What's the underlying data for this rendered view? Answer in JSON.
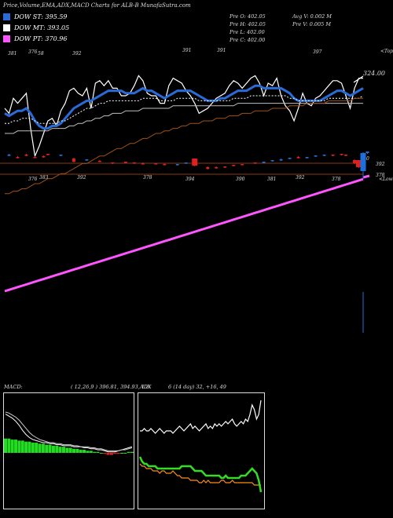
{
  "title": "Price,Volume,EMA,ADX,MACD Charts for ALB-B MunafaSutra.com",
  "legend": [
    {
      "label": "DOW ST: 395.59",
      "color": "#2a6bd8"
    },
    {
      "label": "DOW MT: 393.05",
      "color": "#ffffff"
    },
    {
      "label": "DOW PT: 370.96",
      "color": "#ff55ff"
    }
  ],
  "ohlc": {
    "col1": [
      "Pre  O: 402.05",
      "Pre  H: 402.05",
      "Pre  L: 402.00",
      "Pre  C: 402.00"
    ],
    "col2": [
      "Avg V: 0.002  M",
      "Pre  V: 0.005 M"
    ]
  },
  "chart_data": [
    {
      "type": "line",
      "panel": "price-ema",
      "top_right_label": "<Top",
      "last_price_label": "324.00",
      "peak_labels": [
        "381",
        "376",
        "58",
        "392",
        "391",
        "391",
        "397"
      ],
      "trough_labels": [
        "376",
        "383",
        "392",
        "378",
        "394",
        "390",
        "381",
        "392",
        "378",
        "0"
      ],
      "series": [
        {
          "name": "Close",
          "color": "#ffffff",
          "values": [
            390,
            388,
            394,
            392,
            394,
            396,
            382,
            371,
            375,
            380,
            385,
            386,
            383,
            389,
            392,
            397,
            398,
            396,
            395,
            398,
            390,
            400,
            401,
            399,
            401,
            398,
            398,
            395,
            395,
            396,
            399,
            403,
            401,
            396,
            395,
            395,
            392,
            392,
            399,
            402,
            401,
            400,
            397,
            395,
            392,
            388,
            389,
            390,
            392,
            394,
            395,
            396,
            399,
            401,
            400,
            398,
            400,
            402,
            403,
            400,
            395,
            400,
            399,
            402,
            395,
            391,
            389,
            385,
            390,
            396,
            392,
            391,
            394,
            395,
            397,
            399,
            401,
            401,
            400,
            395,
            390,
            398,
            402,
            402
          ]
        },
        {
          "name": "EMA short",
          "color": "#2a6bd8",
          "values": [
            388,
            387,
            388,
            389,
            389,
            390,
            388,
            385,
            383,
            382,
            382,
            383,
            383,
            384,
            386,
            388,
            390,
            391,
            392,
            393,
            393,
            394,
            395,
            396,
            397,
            397,
            397,
            397,
            396,
            396,
            396,
            397,
            398,
            397,
            397,
            396,
            395,
            394,
            395,
            396,
            397,
            397,
            397,
            397,
            396,
            395,
            394,
            393,
            393,
            393,
            394,
            394,
            395,
            396,
            397,
            397,
            397,
            398,
            399,
            399,
            398,
            398,
            398,
            398,
            398,
            397,
            396,
            394,
            393,
            393,
            393,
            393,
            393,
            393,
            394,
            395,
            396,
            397,
            397,
            396,
            395,
            396,
            397,
            398
          ]
        },
        {
          "name": "EMA mid",
          "color": "#ffffff",
          "dashed": true,
          "values": [
            384,
            384,
            385,
            385,
            386,
            386,
            386,
            385,
            384,
            384,
            384,
            384,
            384,
            385,
            385,
            386,
            387,
            388,
            389,
            390,
            390,
            391,
            392,
            392,
            393,
            393,
            393,
            393,
            393,
            393,
            393,
            393,
            394,
            394,
            394,
            394,
            393,
            393,
            393,
            393,
            394,
            394,
            394,
            394,
            394,
            393,
            393,
            393,
            393,
            393,
            393,
            393,
            393,
            394,
            394,
            394,
            394,
            395,
            395,
            395,
            395,
            395,
            395,
            395,
            395,
            395,
            394,
            394,
            393,
            393,
            393,
            393,
            393,
            393,
            393,
            394,
            394,
            394,
            394,
            394,
            394,
            394,
            394,
            395
          ]
        },
        {
          "name": "EMA long",
          "color": "#c0c0c0",
          "values": [
            380,
            380,
            380,
            381,
            381,
            381,
            381,
            381,
            381,
            381,
            381,
            382,
            382,
            382,
            382,
            383,
            383,
            384,
            384,
            385,
            385,
            386,
            386,
            387,
            387,
            388,
            388,
            388,
            389,
            389,
            389,
            389,
            390,
            390,
            390,
            390,
            390,
            390,
            390,
            391,
            391,
            391,
            391,
            391,
            391,
            391,
            391,
            391,
            391,
            391,
            391,
            391,
            391,
            391,
            392,
            392,
            392,
            392,
            392,
            392,
            392,
            392,
            392,
            392,
            392,
            392,
            392,
            392,
            392,
            392,
            392,
            392,
            392,
            392,
            392,
            392,
            392,
            392,
            392,
            392,
            392,
            392,
            392,
            392
          ]
        },
        {
          "name": "EMA 200",
          "color": "#a0521a",
          "values": [
            356,
            356,
            357,
            357,
            358,
            358,
            359,
            360,
            360,
            361,
            362,
            362,
            363,
            364,
            364,
            365,
            366,
            367,
            368,
            368,
            369,
            370,
            371,
            371,
            372,
            373,
            374,
            374,
            375,
            376,
            376,
            377,
            378,
            378,
            379,
            380,
            380,
            381,
            381,
            382,
            382,
            383,
            383,
            384,
            384,
            384,
            385,
            385,
            385,
            386,
            386,
            386,
            387,
            387,
            387,
            388,
            388,
            388,
            389,
            389,
            389,
            389,
            390,
            390,
            390,
            390,
            391,
            391,
            391,
            391,
            392,
            392,
            392,
            392,
            392,
            393,
            393,
            393,
            393,
            393,
            393,
            394,
            394,
            394
          ]
        }
      ]
    },
    {
      "type": "bar",
      "panel": "price-candles",
      "top_right_label": "<Low",
      "peak_labels": [
        "376",
        "383",
        "392",
        "378",
        "394",
        "390",
        "381",
        "392",
        "378",
        "0"
      ],
      "hlines": [
        392,
        378
      ],
      "hline_labels": [
        "392",
        "378"
      ],
      "candles": [
        {
          "i": 1,
          "o": 402,
          "c": 403,
          "h": 404,
          "l": 401
        },
        {
          "i": 3,
          "o": 400,
          "c": 399,
          "h": 401,
          "l": 398
        },
        {
          "i": 5,
          "o": 403,
          "c": 402,
          "h": 404,
          "l": 401
        },
        {
          "i": 7,
          "o": 400,
          "c": 399,
          "h": 401,
          "l": 399
        },
        {
          "i": 9,
          "o": 401,
          "c": 400,
          "h": 402,
          "l": 399
        },
        {
          "i": 10,
          "o": 404,
          "c": 403,
          "h": 404,
          "l": 402
        },
        {
          "i": 13,
          "o": 402,
          "c": 403,
          "h": 403,
          "l": 401
        },
        {
          "i": 16,
          "o": 398,
          "c": 394,
          "h": 399,
          "l": 393
        },
        {
          "i": 19,
          "o": 396,
          "c": 397,
          "h": 397,
          "l": 395
        },
        {
          "i": 22,
          "o": 395,
          "c": 394,
          "h": 396,
          "l": 394
        },
        {
          "i": 25,
          "o": 393,
          "c": 392,
          "h": 393,
          "l": 391
        },
        {
          "i": 28,
          "o": 394,
          "c": 393,
          "h": 394,
          "l": 392
        },
        {
          "i": 30,
          "o": 393,
          "c": 392,
          "h": 393,
          "l": 391
        },
        {
          "i": 32,
          "o": 392,
          "c": 391,
          "h": 393,
          "l": 391
        },
        {
          "i": 35,
          "o": 392,
          "c": 391,
          "h": 392,
          "l": 391
        },
        {
          "i": 37,
          "o": 391,
          "c": 390,
          "h": 392,
          "l": 390
        },
        {
          "i": 40,
          "o": 390,
          "c": 391,
          "h": 391,
          "l": 389
        },
        {
          "i": 42,
          "o": 392,
          "c": 393,
          "h": 393,
          "l": 391
        },
        {
          "i": 44,
          "o": 398,
          "c": 389,
          "h": 398,
          "l": 388
        },
        {
          "i": 47,
          "o": 387,
          "c": 385,
          "h": 388,
          "l": 384
        },
        {
          "i": 49,
          "o": 387,
          "c": 386,
          "h": 388,
          "l": 385
        },
        {
          "i": 51,
          "o": 388,
          "c": 387,
          "h": 388,
          "l": 386
        },
        {
          "i": 53,
          "o": 390,
          "c": 389,
          "h": 390,
          "l": 388
        },
        {
          "i": 55,
          "o": 391,
          "c": 390,
          "h": 391,
          "l": 390
        },
        {
          "i": 58,
          "o": 393,
          "c": 392,
          "h": 393,
          "l": 391
        },
        {
          "i": 60,
          "o": 393,
          "c": 394,
          "h": 394,
          "l": 392
        },
        {
          "i": 62,
          "o": 395,
          "c": 396,
          "h": 396,
          "l": 394
        },
        {
          "i": 64,
          "o": 396,
          "c": 397,
          "h": 398,
          "l": 395
        },
        {
          "i": 66,
          "o": 398,
          "c": 399,
          "h": 399,
          "l": 397
        },
        {
          "i": 68,
          "o": 400,
          "c": 399,
          "h": 401,
          "l": 398
        },
        {
          "i": 70,
          "o": 399,
          "c": 400,
          "h": 400,
          "l": 398
        },
        {
          "i": 72,
          "o": 401,
          "c": 402,
          "h": 402,
          "l": 400
        },
        {
          "i": 74,
          "o": 402,
          "c": 403,
          "h": 403,
          "l": 401
        },
        {
          "i": 76,
          "o": 403,
          "c": 402,
          "h": 403,
          "l": 401
        },
        {
          "i": 78,
          "o": 404,
          "c": 403,
          "h": 404,
          "l": 402
        },
        {
          "i": 79,
          "o": 403,
          "c": 402,
          "h": 403,
          "l": 401
        },
        {
          "i": 81,
          "o": 396,
          "c": 392,
          "h": 397,
          "l": 391
        },
        {
          "i": 82,
          "o": 396,
          "c": 387,
          "h": 396,
          "l": 386
        },
        {
          "i": 83,
          "o": 382,
          "c": 405,
          "h": 406,
          "l": 372
        },
        {
          "i": 84,
          "o": 405,
          "c": 407,
          "h": 407,
          "l": 404
        }
      ]
    },
    {
      "type": "line",
      "panel": "macd",
      "title": "MACD:",
      "params": "( 12,26,9 ) 396.81, 394.93, 1.8",
      "histogram": [
        14,
        14,
        13,
        13,
        12,
        12,
        11,
        11,
        10,
        10,
        9,
        9,
        8,
        8,
        7,
        7,
        6,
        6,
        5,
        5,
        4,
        4,
        3,
        3,
        2,
        2,
        1,
        1,
        0,
        -1,
        -2,
        -2,
        -1,
        -1,
        0,
        0,
        1,
        1
      ],
      "series": [
        {
          "name": "MACD",
          "color": "#ffffff",
          "values": [
            38,
            36,
            34,
            31,
            27,
            22,
            18,
            15,
            13,
            12,
            11,
            10,
            10,
            9,
            9,
            8,
            8,
            7,
            7,
            7,
            6,
            6,
            6,
            5,
            5,
            4,
            4,
            3,
            3,
            2,
            1,
            1,
            1,
            2,
            3,
            4,
            5,
            6
          ]
        },
        {
          "name": "Signal",
          "color": "#cccccc",
          "values": [
            40,
            39,
            37,
            35,
            32,
            28,
            24,
            20,
            17,
            15,
            13,
            12,
            11,
            10,
            10,
            9,
            9,
            8,
            8,
            8,
            7,
            7,
            6,
            6,
            6,
            5,
            5,
            4,
            4,
            3,
            2,
            2,
            2,
            2,
            3,
            3,
            4,
            5
          ]
        }
      ]
    },
    {
      "type": "line",
      "panel": "adx",
      "title": "ADX",
      "params": "6    (14 day) 32, +16, 49",
      "series": [
        {
          "name": "ADX",
          "color": "#ffffff",
          "values": [
            33,
            33,
            34,
            33,
            33,
            34,
            33,
            32,
            33,
            34,
            33,
            32,
            33,
            33,
            33,
            32,
            33,
            34,
            35,
            34,
            33,
            34,
            35,
            36,
            34,
            35,
            34,
            33,
            34,
            35,
            36,
            34,
            35,
            34,
            36,
            35,
            36,
            35,
            36,
            37,
            36,
            37,
            38,
            36,
            35,
            36,
            37,
            36,
            38,
            37,
            40,
            44,
            42,
            38,
            40,
            46
          ]
        },
        {
          "name": "+DI",
          "color": "#ff8c1a",
          "values": [
            19,
            18,
            18,
            17,
            17,
            17,
            16,
            16,
            16,
            15,
            16,
            16,
            15,
            15,
            15,
            16,
            15,
            14,
            14,
            13,
            13,
            13,
            13,
            12,
            12,
            12,
            12,
            11,
            11,
            12,
            11,
            12,
            11,
            11,
            11,
            11,
            11,
            12,
            12,
            11,
            11,
            11,
            12,
            11,
            11,
            11,
            11,
            11,
            11,
            11,
            11,
            11,
            10,
            10,
            10,
            10
          ]
        },
        {
          "name": "-DI",
          "color": "#33dd22",
          "values": [
            22,
            20,
            19,
            19,
            18,
            18,
            18,
            18,
            17,
            17,
            17,
            17,
            17,
            17,
            17,
            17,
            17,
            17,
            17,
            18,
            18,
            18,
            18,
            18,
            17,
            16,
            16,
            16,
            16,
            15,
            14,
            14,
            14,
            14,
            14,
            14,
            14,
            13,
            13,
            14,
            13,
            13,
            13,
            13,
            13,
            13,
            14,
            14,
            14,
            15,
            16,
            17,
            16,
            15,
            12,
            7
          ]
        }
      ]
    }
  ]
}
